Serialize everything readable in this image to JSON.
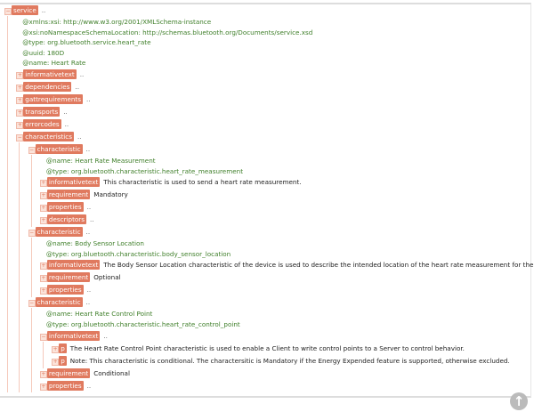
{
  "colors": {
    "tag": "#e07a5f",
    "attribute": "#3f7f2a",
    "text": "#222222"
  },
  "toggle_icon": "plus-minus-box",
  "ellipsis": "..",
  "tree": {
    "tag": "service",
    "expanded": true,
    "attrs": [
      [
        "@xmlns:xsi",
        "http://www.w3.org/2001/XMLSchema-instance"
      ],
      [
        "@xsi:noNamespaceSchemaLocation",
        "http://schemas.bluetooth.org/Documents/service.xsd"
      ],
      [
        "@type",
        "org.bluetooth.service.heart_rate"
      ],
      [
        "@uuid",
        "180D"
      ],
      [
        "@name",
        "Heart Rate"
      ]
    ],
    "children": [
      {
        "tag": "informativetext"
      },
      {
        "tag": "dependencies"
      },
      {
        "tag": "gattrequirements"
      },
      {
        "tag": "transports"
      },
      {
        "tag": "errorcodes"
      },
      {
        "tag": "characteristics",
        "expanded": true,
        "children": [
          {
            "tag": "characteristic",
            "expanded": true,
            "attrs": [
              [
                "@name",
                "Heart Rate Measurement"
              ],
              [
                "@type",
                "org.bluetooth.characteristic.heart_rate_measurement"
              ]
            ],
            "children": [
              {
                "tag": "informativetext",
                "text": "This characteristic is used to send a heart rate measurement."
              },
              {
                "tag": "requirement",
                "text": "Mandatory"
              },
              {
                "tag": "properties"
              },
              {
                "tag": "descriptors"
              }
            ]
          },
          {
            "tag": "characteristic",
            "expanded": true,
            "attrs": [
              [
                "@name",
                "Body Sensor Location"
              ],
              [
                "@type",
                "org.bluetooth.characteristic.body_sensor_location"
              ]
            ],
            "children": [
              {
                "tag": "informativetext",
                "text": "The Body Sensor Location characteristic of the device is used to describe the intended location of the heart rate measurement for the device."
              },
              {
                "tag": "requirement",
                "text": "Optional"
              },
              {
                "tag": "properties"
              }
            ]
          },
          {
            "tag": "characteristic",
            "expanded": true,
            "attrs": [
              [
                "@name",
                "Heart Rate Control Point"
              ],
              [
                "@type",
                "org.bluetooth.characteristic.heart_rate_control_point"
              ]
            ],
            "children": [
              {
                "tag": "informativetext",
                "expanded": true,
                "children": [
                  {
                    "tag": "p",
                    "text": "The Heart Rate Control Point characteristic is used to enable a Client to write control points to a Server to control behavior."
                  },
                  {
                    "tag": "p",
                    "text": "Note: This characteristic is conditional. The charactersitic is Mandatory if the Energy Expended feature is supported, otherwise excluded."
                  }
                ]
              },
              {
                "tag": "requirement",
                "text": "Conditional"
              },
              {
                "tag": "properties"
              }
            ]
          }
        ]
      }
    ]
  }
}
